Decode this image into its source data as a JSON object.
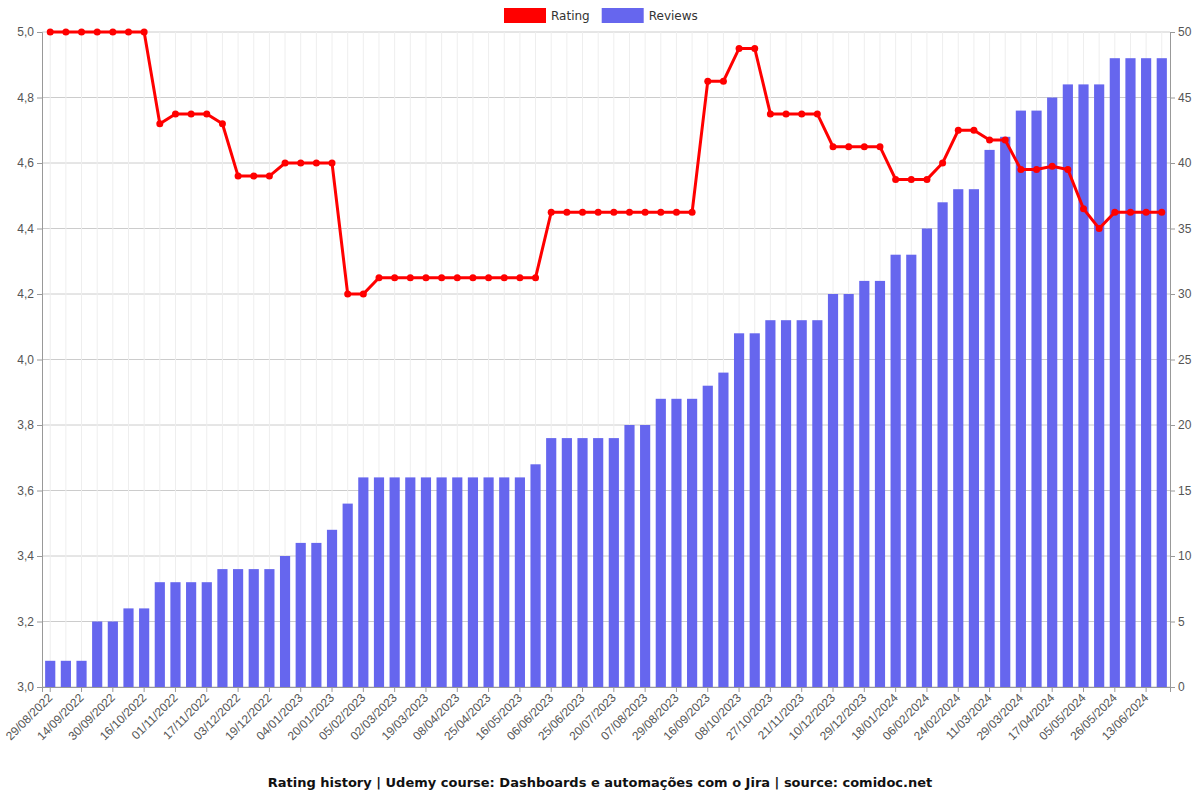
{
  "chart_data": {
    "type": "bar",
    "title": "Rating history | Udemy course: Dashboards e automações com o Jira | source: comidoc.net",
    "categories": [
      "29/08/2022",
      null,
      "14/09/2022",
      null,
      "30/09/2022",
      null,
      "16/10/2022",
      null,
      "01/11/2022",
      null,
      "17/11/2022",
      null,
      "03/12/2022",
      null,
      "19/12/2022",
      null,
      "04/01/2023",
      null,
      "20/01/2023",
      null,
      "05/02/2023",
      null,
      "02/03/2023",
      null,
      "19/03/2023",
      null,
      "08/04/2023",
      null,
      "25/04/2023",
      null,
      "16/05/2023",
      null,
      "06/06/2023",
      null,
      "25/06/2023",
      null,
      "20/07/2023",
      null,
      "07/08/2023",
      null,
      "29/08/2023",
      null,
      "16/09/2023",
      null,
      "08/10/2023",
      null,
      "27/10/2023",
      null,
      "21/11/2023",
      null,
      "10/12/2023",
      null,
      "29/12/2023",
      null,
      "18/01/2024",
      null,
      "06/02/2024",
      null,
      "24/02/2024",
      null,
      "11/03/2024",
      null,
      "29/03/2024",
      null,
      "17/04/2024",
      null,
      "05/05/2024",
      null,
      "26/05/2024",
      null,
      "13/06/2024",
      null
    ],
    "series": [
      {
        "name": "Rating",
        "type": "line",
        "color": "#ff0000",
        "marker": "circle",
        "values": [
          5.0,
          5.0,
          5.0,
          5.0,
          5.0,
          5.0,
          5.0,
          4.72,
          4.75,
          4.75,
          4.75,
          4.72,
          4.56,
          4.56,
          4.56,
          4.6,
          4.6,
          4.6,
          4.6,
          4.2,
          4.2,
          4.25,
          4.25,
          4.25,
          4.25,
          4.25,
          4.25,
          4.25,
          4.25,
          4.25,
          4.25,
          4.25,
          4.45,
          4.45,
          4.45,
          4.45,
          4.45,
          4.45,
          4.45,
          4.45,
          4.45,
          4.45,
          4.85,
          4.85,
          4.95,
          4.95,
          4.75,
          4.75,
          4.75,
          4.75,
          4.65,
          4.65,
          4.65,
          4.65,
          4.55,
          4.55,
          4.55,
          4.6,
          4.7,
          4.7,
          4.67,
          4.67,
          4.58,
          4.58,
          4.59,
          4.58,
          4.46,
          4.4,
          4.45,
          4.45,
          4.45,
          4.45
        ]
      },
      {
        "name": "Reviews",
        "type": "bar",
        "axis": "y2",
        "color": "#6666ee",
        "values": [
          2,
          2,
          2,
          5,
          5,
          6,
          6,
          8,
          8,
          8,
          8,
          9,
          9,
          9,
          9,
          10,
          11,
          11,
          12,
          14,
          16,
          16,
          16,
          16,
          16,
          16,
          16,
          16,
          16,
          16,
          16,
          17,
          19,
          19,
          19,
          19,
          19,
          20,
          20,
          22,
          22,
          22,
          23,
          24,
          27,
          27,
          28,
          28,
          28,
          28,
          30,
          30,
          31,
          31,
          33,
          33,
          35,
          37,
          38,
          38,
          41,
          42,
          44,
          44,
          45,
          46,
          46,
          46,
          48,
          48,
          48,
          48
        ]
      }
    ],
    "ylim": [
      3.0,
      5.0
    ],
    "yticks": [
      {
        "value": 3.0,
        "label": "3,0"
      },
      {
        "value": 3.2,
        "label": "3,2"
      },
      {
        "value": 3.4,
        "label": "3,4"
      },
      {
        "value": 3.6,
        "label": "3,6"
      },
      {
        "value": 3.8,
        "label": "3,8"
      },
      {
        "value": 4.0,
        "label": "4,0"
      },
      {
        "value": 4.2,
        "label": "4,2"
      },
      {
        "value": 4.4,
        "label": "4,4"
      },
      {
        "value": 4.6,
        "label": "4,6"
      },
      {
        "value": 4.8,
        "label": "4,8"
      },
      {
        "value": 5.0,
        "label": "5,0"
      }
    ],
    "y2lim": [
      0,
      50
    ],
    "y2ticks": [
      0,
      5,
      10,
      15,
      20,
      25,
      30,
      35,
      40,
      45,
      50
    ],
    "grid": true,
    "legend": "top"
  }
}
